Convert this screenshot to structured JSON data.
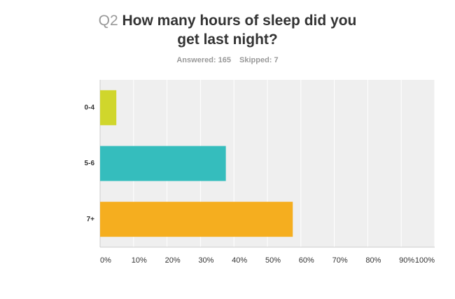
{
  "chart_data": {
    "type": "bar",
    "orientation": "horizontal",
    "question_number": "Q2",
    "title": "How many hours of sleep did you get last night?",
    "answered": "Answered: 165",
    "skipped": "Skipped: 7",
    "categories": [
      "0-4",
      "5-6",
      "7+"
    ],
    "values": [
      4.85,
      37.58,
      57.58
    ],
    "colors": [
      "#d0d62c",
      "#35bdbd",
      "#f5ae1f"
    ],
    "xlim": [
      0,
      100
    ],
    "xticks": [
      {
        "value": 0,
        "label": "0%"
      },
      {
        "value": 10,
        "label": "10%"
      },
      {
        "value": 20,
        "label": "20%"
      },
      {
        "value": 30,
        "label": "30%"
      },
      {
        "value": 40,
        "label": "40%"
      },
      {
        "value": 50,
        "label": "50%"
      },
      {
        "value": 60,
        "label": "60%"
      },
      {
        "value": 70,
        "label": "70%"
      },
      {
        "value": 80,
        "label": "80%"
      },
      {
        "value": 90,
        "label": "90%"
      },
      {
        "value": 100,
        "label": "100%"
      }
    ],
    "grid": true
  }
}
